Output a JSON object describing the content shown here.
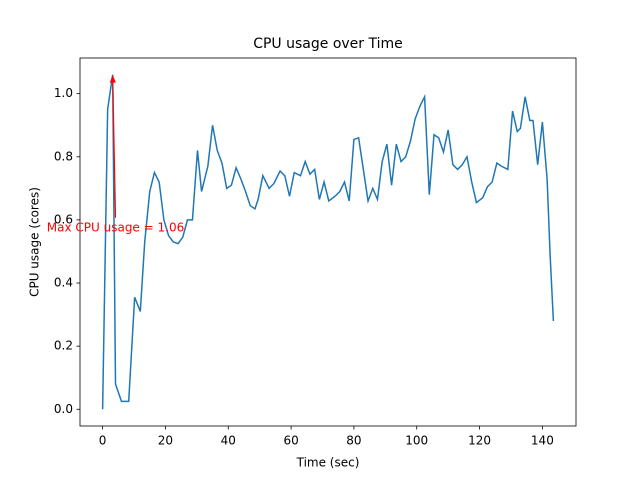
{
  "chart_data": {
    "type": "line",
    "title": "CPU usage over Time",
    "x_label": "Time (sec)",
    "y_label": "CPU usage (cores)",
    "x": [
      0,
      1.6,
      3.2,
      4.1,
      6,
      8.3,
      10.2,
      12,
      13.4,
      15,
      16.5,
      18,
      19.5,
      21,
      22.5,
      24,
      25.5,
      27,
      28.6,
      30.2,
      31.5,
      33.5,
      35,
      36.5,
      38,
      39.5,
      41,
      42.5,
      44,
      45.5,
      47,
      48.5,
      49.5,
      51,
      53,
      54.5,
      56.5,
      58,
      59.5,
      61,
      63,
      64.5,
      66,
      67.5,
      69,
      70.5,
      72,
      74,
      75.5,
      77,
      78.5,
      80,
      81.5,
      83,
      84.5,
      86,
      87.5,
      89,
      90.5,
      92,
      93.5,
      95,
      96.5,
      98,
      99.5,
      101,
      102.5,
      104,
      105.5,
      107,
      108.5,
      110,
      111.5,
      113,
      114.5,
      116,
      117.5,
      119,
      121,
      122.5,
      124,
      125.5,
      127,
      129,
      130.5,
      132,
      133,
      134.5,
      136,
      137,
      138.5,
      140,
      141.5,
      142.5,
      143.5
    ],
    "series": [
      {
        "name": "CPU usage",
        "color": "#1f77b4",
        "values": [
          0,
          0.95,
          1.06,
          0.08,
          0.025,
          0.025,
          0.355,
          0.31,
          0.53,
          0.69,
          0.75,
          0.72,
          0.6,
          0.55,
          0.53,
          0.525,
          0.545,
          0.6,
          0.6,
          0.82,
          0.69,
          0.77,
          0.9,
          0.82,
          0.78,
          0.7,
          0.71,
          0.765,
          0.73,
          0.69,
          0.645,
          0.635,
          0.665,
          0.74,
          0.7,
          0.715,
          0.755,
          0.74,
          0.675,
          0.75,
          0.74,
          0.785,
          0.745,
          0.76,
          0.665,
          0.72,
          0.66,
          0.675,
          0.69,
          0.72,
          0.66,
          0.855,
          0.86,
          0.76,
          0.66,
          0.7,
          0.665,
          0.785,
          0.84,
          0.71,
          0.84,
          0.785,
          0.8,
          0.85,
          0.92,
          0.96,
          0.99,
          0.68,
          0.87,
          0.86,
          0.815,
          0.885,
          0.775,
          0.76,
          0.775,
          0.8,
          0.72,
          0.655,
          0.67,
          0.705,
          0.72,
          0.78,
          0.77,
          0.76,
          0.945,
          0.88,
          0.89,
          0.99,
          0.915,
          0.915,
          0.775,
          0.91,
          0.73,
          0.48,
          0.28
        ]
      }
    ],
    "annotation": {
      "text": "Max CPU usage = 1.06",
      "xy": [
        3.2,
        1.06
      ],
      "xytext": [
        4.1,
        0.575
      ],
      "color": "#ff0000"
    },
    "xlim": [
      -7.2,
      150.7
    ],
    "ylim": [
      -0.053,
      1.113
    ],
    "xticks": [
      0,
      20,
      40,
      60,
      80,
      100,
      120,
      140
    ],
    "yticks": [
      {
        "value": 0,
        "label": "0.0"
      },
      {
        "value": 0.2,
        "label": "0.2"
      },
      {
        "value": 0.4,
        "label": "0.4"
      },
      {
        "value": 0.6,
        "label": "0.6"
      },
      {
        "value": 0.8,
        "label": "0.8"
      },
      {
        "value": 1.0,
        "label": "1.0"
      }
    ],
    "grid": false
  }
}
